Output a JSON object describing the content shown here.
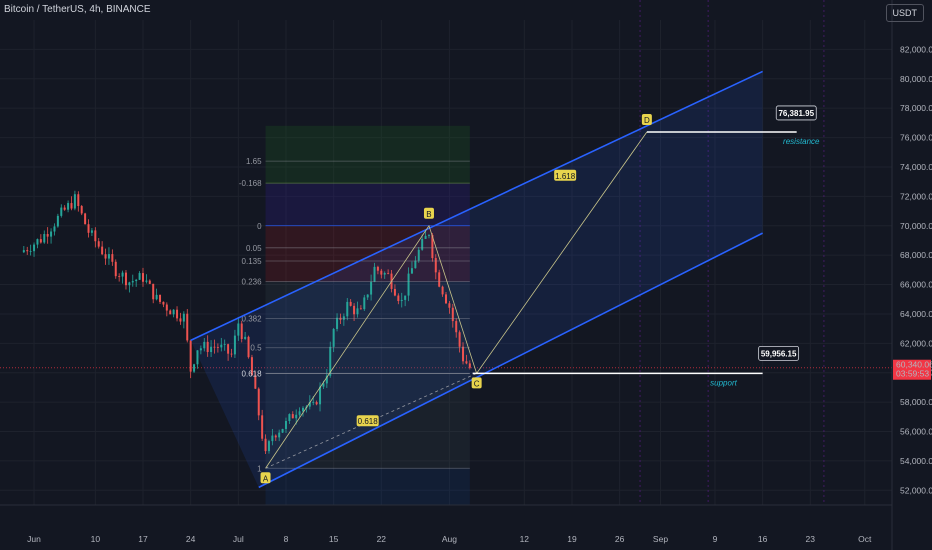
{
  "header": {
    "symbol": "Bitcoin / TetherUS, 4h, BINANCE",
    "currency": "USDT"
  },
  "colors": {
    "background": "#131722",
    "up": "#26a69a",
    "down": "#ef5350",
    "channel": "#2962ff",
    "label_bg": "#e8d44d",
    "annotation": "#22b8cf",
    "price_tag": "#f23645"
  },
  "chart_data": {
    "type": "candlestick",
    "title": "",
    "x_ticks": [
      "Jun",
      "10",
      "17",
      "24",
      "Jul",
      "8",
      "15",
      "22",
      "Aug",
      "12",
      "19",
      "26",
      "Sep",
      "9",
      "16",
      "23",
      "Oct"
    ],
    "y_ticks": [
      "82,000.00",
      "80,000.00",
      "78,000.00",
      "76,000.00",
      "74,000.00",
      "72,000.00",
      "70,000.00",
      "68,000.00",
      "66,000.00",
      "64,000.00",
      "62,000.00",
      "60,000.00",
      "58,000.00",
      "56,000.00",
      "54,000.00",
      "52,000.00"
    ],
    "ylim": [
      51000,
      84000
    ],
    "current_price": {
      "value": 60340.06,
      "label": "60,340.06",
      "countdown": "03:59:53"
    },
    "price_path": [
      [
        "2024-05-30",
        68200
      ],
      [
        "2024-06-02",
        69100
      ],
      [
        "2024-06-05",
        70800
      ],
      [
        "2024-06-07",
        71800
      ],
      [
        "2024-06-09",
        69600
      ],
      [
        "2024-06-11",
        68300
      ],
      [
        "2024-06-13",
        67000
      ],
      [
        "2024-06-15",
        66200
      ],
      [
        "2024-06-17",
        66500
      ],
      [
        "2024-06-19",
        65000
      ],
      [
        "2024-06-21",
        64300
      ],
      [
        "2024-06-23",
        63800
      ],
      [
        "2024-06-24",
        60200
      ],
      [
        "2024-06-25",
        61700
      ],
      [
        "2024-06-28",
        61800
      ],
      [
        "2024-06-30",
        61200
      ],
      [
        "2024-07-01",
        63400
      ],
      [
        "2024-07-02",
        62000
      ],
      [
        "2024-07-03",
        59800
      ],
      [
        "2024-07-04",
        57200
      ],
      [
        "2024-07-05",
        54300
      ],
      [
        "2024-07-06",
        55800
      ],
      [
        "2024-07-08",
        56500
      ],
      [
        "2024-07-10",
        57800
      ],
      [
        "2024-07-12",
        57600
      ],
      [
        "2024-07-14",
        60100
      ],
      [
        "2024-07-15",
        62900
      ],
      [
        "2024-07-17",
        64600
      ],
      [
        "2024-07-19",
        64000
      ],
      [
        "2024-07-21",
        67100
      ],
      [
        "2024-07-23",
        66600
      ],
      [
        "2024-07-25",
        64800
      ],
      [
        "2024-07-27",
        67800
      ],
      [
        "2024-07-29",
        69600
      ],
      [
        "2024-07-30",
        66800
      ],
      [
        "2024-08-01",
        64500
      ],
      [
        "2024-08-02",
        62600
      ],
      [
        "2024-08-03",
        61000
      ],
      [
        "2024-08-04",
        60340
      ]
    ],
    "points": [
      {
        "label": "A",
        "date": "2024-07-05",
        "price": 53500
      },
      {
        "label": "B",
        "date": "2024-07-29",
        "price": 70000
      },
      {
        "label": "C",
        "date": "2024-08-05",
        "price": 59956.15
      },
      {
        "label": "D",
        "date": "2024-08-30",
        "price": 76381.95
      }
    ],
    "fib_levels": [
      {
        "level": "1.65",
        "price": 74400
      },
      {
        "level": "-0.168",
        "price": 72900
      },
      {
        "level": "0",
        "price": 70000
      },
      {
        "level": "0.05",
        "price": 68500
      },
      {
        "level": "0.135",
        "price": 67600
      },
      {
        "level": "0.236",
        "price": 66200
      },
      {
        "level": "0.382",
        "price": 63700
      },
      {
        "level": "0.5",
        "price": 61700
      },
      {
        "level": "0.618",
        "price": 59956
      },
      {
        "level": "1",
        "price": 53500
      }
    ],
    "channel_upper": [
      [
        "2024-06-24",
        62200
      ],
      [
        "2024-09-16",
        80500
      ]
    ],
    "channel_lower": [
      [
        "2024-07-04",
        52200
      ],
      [
        "2024-09-16",
        69500
      ]
    ],
    "extension_labels": [
      {
        "text": "1.618",
        "date": "2024-08-18",
        "price": 73400
      },
      {
        "text": "0.618",
        "date": "2024-07-20",
        "price": 56700
      }
    ],
    "levels": [
      {
        "name": "resistance",
        "value_label": "76,381.95",
        "price": 76381.95
      },
      {
        "name": "support",
        "value_label": "59,956.15",
        "price": 59956.15
      }
    ]
  }
}
